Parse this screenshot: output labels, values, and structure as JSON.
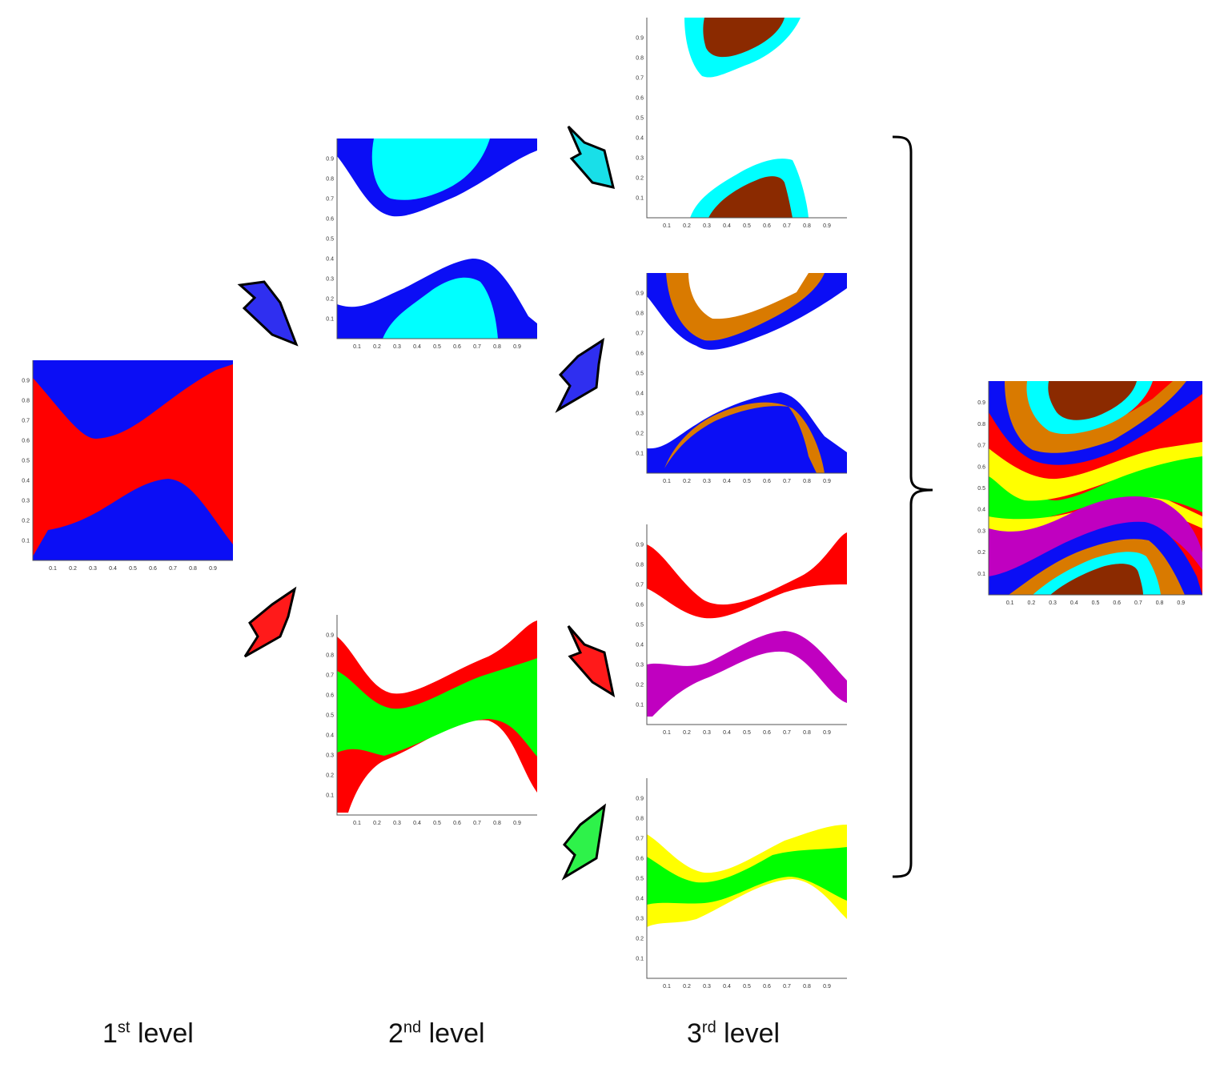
{
  "colors": {
    "blue": "#0b0ef5",
    "red": "#ff0000",
    "cyan": "#00ffff",
    "brown": "#8b2a00",
    "orange": "#d97a00",
    "magenta": "#c000c0",
    "green": "#00ff00",
    "yellow": "#ffff00",
    "arrow_blue": "#2f2ff0",
    "arrow_red": "#ff1a1a",
    "arrow_cyan": "#19dfe8",
    "arrow_green": "#2ef24a"
  },
  "axis_ticks": [
    "0.1",
    "0.2",
    "0.3",
    "0.4",
    "0.5",
    "0.6",
    "0.7",
    "0.8",
    "0.9"
  ],
  "levels": {
    "first": {
      "main": "1",
      "sup": "st",
      "word": "level"
    },
    "second": {
      "main": "2",
      "sup": "nd",
      "word": "level"
    },
    "third": {
      "main": "3",
      "sup": "rd",
      "word": "level"
    }
  },
  "panels": [
    {
      "id": "level1",
      "classes": [
        "blue",
        "red"
      ]
    },
    {
      "id": "level2-top",
      "classes": [
        "blue",
        "cyan"
      ]
    },
    {
      "id": "level2-bottom",
      "classes": [
        "red",
        "green"
      ]
    },
    {
      "id": "level3-1",
      "classes": [
        "cyan",
        "brown"
      ]
    },
    {
      "id": "level3-2",
      "classes": [
        "blue",
        "orange"
      ]
    },
    {
      "id": "level3-3",
      "classes": [
        "red",
        "magenta"
      ]
    },
    {
      "id": "level3-4",
      "classes": [
        "yellow",
        "green"
      ]
    },
    {
      "id": "combined",
      "classes": [
        "brown",
        "cyan",
        "blue",
        "orange",
        "red",
        "yellow",
        "green",
        "magenta"
      ]
    }
  ]
}
